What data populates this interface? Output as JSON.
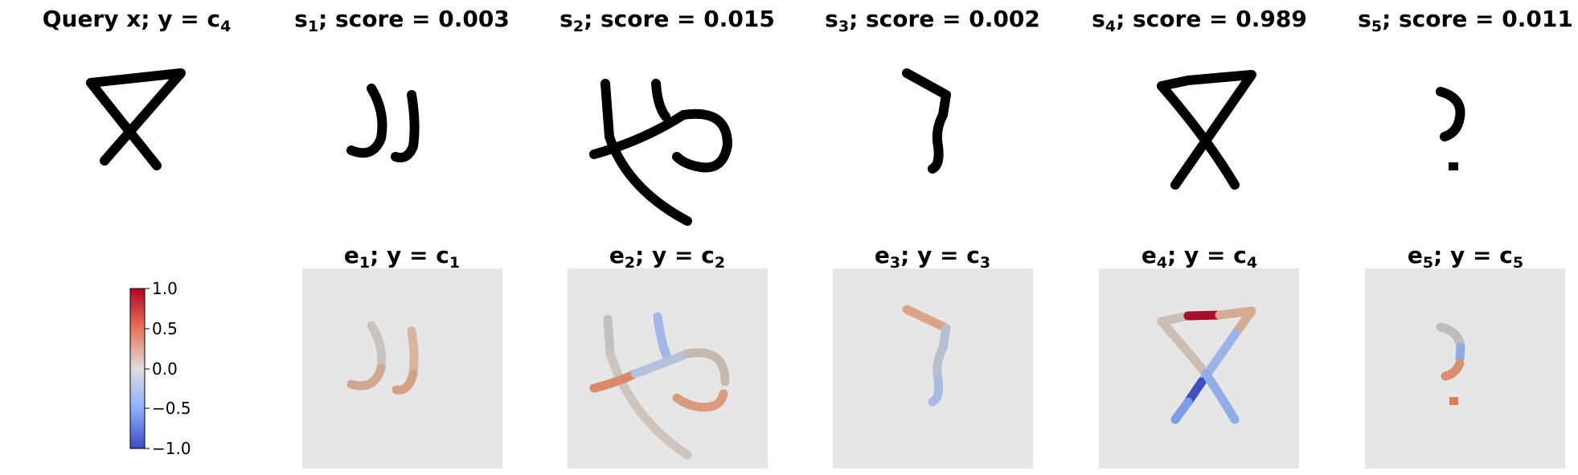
{
  "query": {
    "label": "Query x; y = ",
    "class_symbol": "c",
    "class_sub": "4"
  },
  "support": [
    {
      "symbol": "s",
      "sub": "1",
      "score_label": "; score = 0.003",
      "score": 0.003
    },
    {
      "symbol": "s",
      "sub": "2",
      "score_label": "; score = 0.015",
      "score": 0.015
    },
    {
      "symbol": "s",
      "sub": "3",
      "score_label": "; score = 0.002",
      "score": 0.002
    },
    {
      "symbol": "s",
      "sub": "4",
      "score_label": "; score = 0.989",
      "score": 0.989
    },
    {
      "symbol": "s",
      "sub": "5",
      "score_label": "; score = 0.011",
      "score": 0.011
    }
  ],
  "explanations": [
    {
      "symbol": "e",
      "sub": "1",
      "mid": "; y = ",
      "class_symbol": "c",
      "class_sub": "1"
    },
    {
      "symbol": "e",
      "sub": "2",
      "mid": "; y = ",
      "class_symbol": "c",
      "class_sub": "2"
    },
    {
      "symbol": "e",
      "sub": "3",
      "mid": "; y = ",
      "class_symbol": "c",
      "class_sub": "3"
    },
    {
      "symbol": "e",
      "sub": "4",
      "mid": "; y = ",
      "class_symbol": "c",
      "class_sub": "4"
    },
    {
      "symbol": "e",
      "sub": "5",
      "mid": "; y = ",
      "class_symbol": "c",
      "class_sub": "5"
    }
  ],
  "colorbar": {
    "colormap": "coolwarm",
    "min": -1.0,
    "max": 1.0,
    "ticks": [
      "1.0",
      "0.5",
      "0.0",
      "−0.5",
      "−1.0"
    ],
    "colors": {
      "high": "#b40426",
      "mid": "#dddddd",
      "low": "#3b4cc0"
    }
  },
  "panel_background": "#e6e6e6",
  "glyph_color": "#000000"
}
